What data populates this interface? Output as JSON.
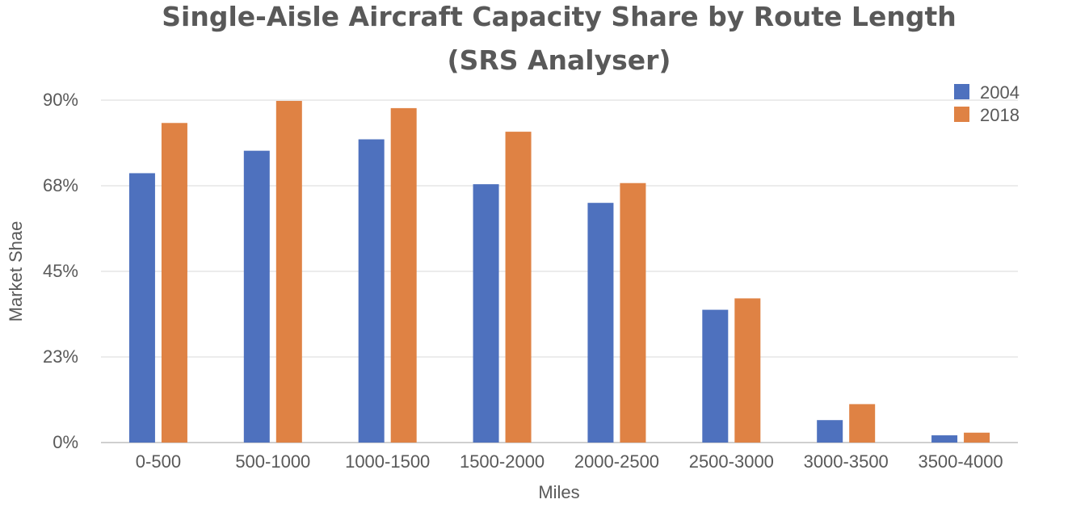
{
  "chart_data": {
    "type": "bar",
    "title": "Single-Aisle Aircraft Capacity Share by Route Length",
    "subtitle": "(SRS Analyser)",
    "xlabel": "Miles",
    "ylabel": "Market Shae",
    "categories": [
      "0-500",
      "500-1000",
      "1000-1500",
      "1500-2000",
      "2000-2500",
      "2500-3000",
      "3000-3500",
      "3500-4000"
    ],
    "series": [
      {
        "name": "2004",
        "color": "#4e71be",
        "values": [
          70.8,
          76.7,
          79.7,
          67.9,
          63.0,
          34.9,
          5.9,
          1.9
        ]
      },
      {
        "name": "2018",
        "color": "#df8244",
        "values": [
          84.0,
          89.8,
          87.9,
          81.7,
          68.2,
          37.9,
          10.1,
          2.6
        ]
      }
    ],
    "yticks": [
      "0%",
      "23%",
      "45%",
      "68%",
      "90%"
    ],
    "ylim": [
      0,
      90
    ],
    "grid": true,
    "legend": "top-right"
  }
}
